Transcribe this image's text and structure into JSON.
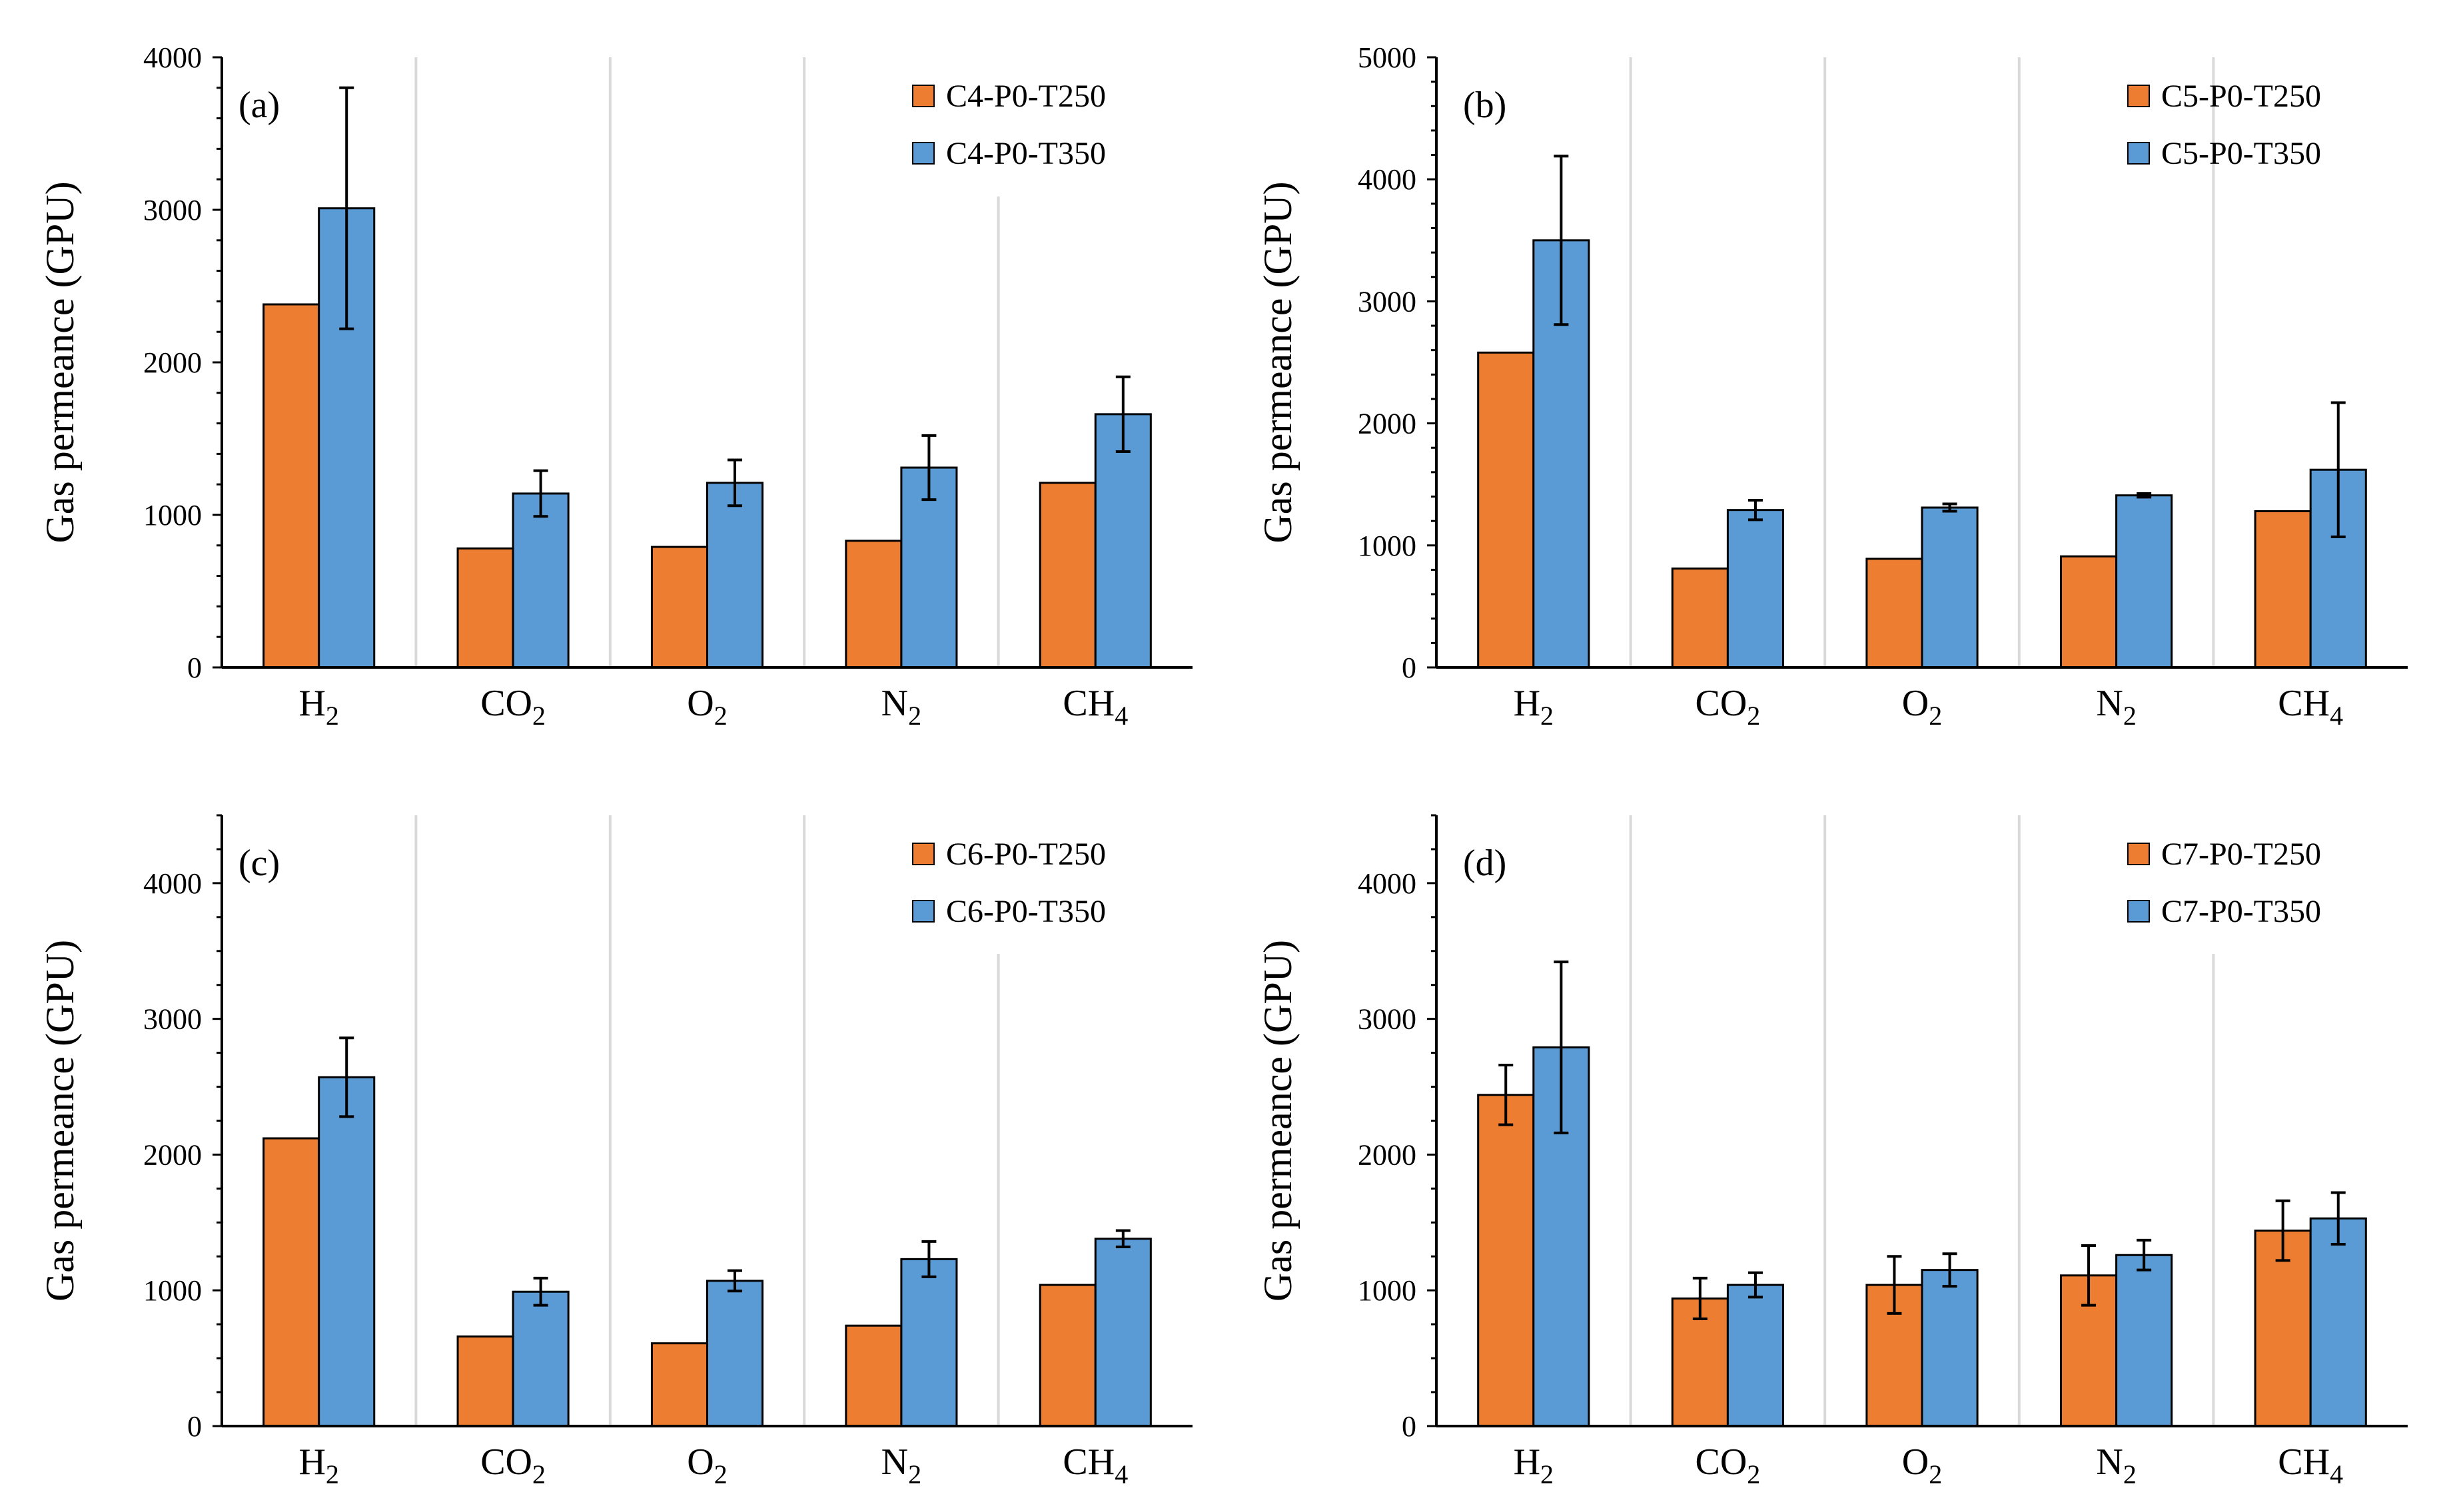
{
  "colors": {
    "series1": "#ED7D31",
    "series2": "#5B9BD5",
    "edge": "#000000",
    "divider": "#D9D9D9",
    "axis": "#000000"
  },
  "chart_data": [
    {
      "type": "bar",
      "label": "(a)",
      "ylabel": "Gas permeance (GPU)",
      "ylim": [
        0,
        4000
      ],
      "yticks": [
        0,
        1000,
        2000,
        3000,
        4000
      ],
      "minor_step": 200,
      "categories": [
        {
          "base": "H",
          "sub": "2"
        },
        {
          "base": "CO",
          "sub": "2"
        },
        {
          "base": "O",
          "sub": "2"
        },
        {
          "base": "N",
          "sub": "2"
        },
        {
          "base": "CH",
          "sub": "4"
        }
      ],
      "legend_position": "top-right",
      "series": [
        {
          "name": "C4-P0-T250",
          "values": [
            2380,
            780,
            790,
            830,
            1210
          ],
          "errors": [
            0,
            0,
            0,
            0,
            0
          ]
        },
        {
          "name": "C4-P0-T350",
          "values": [
            3010,
            1140,
            1210,
            1310,
            1660
          ],
          "errors": [
            790,
            150,
            150,
            210,
            245
          ]
        }
      ]
    },
    {
      "type": "bar",
      "label": "(b)",
      "ylabel": "Gas permeance (GPU)",
      "ylim": [
        0,
        5000
      ],
      "yticks": [
        0,
        1000,
        2000,
        3000,
        4000,
        5000
      ],
      "minor_step": 200,
      "categories": [
        {
          "base": "H",
          "sub": "2"
        },
        {
          "base": "CO",
          "sub": "2"
        },
        {
          "base": "O",
          "sub": "2"
        },
        {
          "base": "N",
          "sub": "2"
        },
        {
          "base": "CH",
          "sub": "4"
        }
      ],
      "legend_position": "top-right",
      "series": [
        {
          "name": "C5-P0-T250",
          "values": [
            2580,
            810,
            890,
            910,
            1280
          ],
          "errors": [
            0,
            0,
            0,
            0,
            0
          ]
        },
        {
          "name": "C5-P0-T350",
          "values": [
            3500,
            1290,
            1310,
            1410,
            1620
          ],
          "errors": [
            690,
            80,
            30,
            15,
            550
          ]
        }
      ]
    },
    {
      "type": "bar",
      "label": "(c)",
      "ylabel": "Gas permeance (GPU)",
      "ylim": [
        0,
        4500
      ],
      "yticks": [
        0,
        1000,
        2000,
        3000,
        4000
      ],
      "minor_step": 250,
      "categories": [
        {
          "base": "H",
          "sub": "2"
        },
        {
          "base": "CO",
          "sub": "2"
        },
        {
          "base": "O",
          "sub": "2"
        },
        {
          "base": "N",
          "sub": "2"
        },
        {
          "base": "CH",
          "sub": "4"
        }
      ],
      "legend_position": "top-right",
      "series": [
        {
          "name": "C6-P0-T250",
          "values": [
            2120,
            660,
            610,
            740,
            1040
          ],
          "errors": [
            0,
            0,
            0,
            0,
            0
          ]
        },
        {
          "name": "C6-P0-T350",
          "values": [
            2570,
            990,
            1070,
            1230,
            1380
          ],
          "errors": [
            290,
            100,
            75,
            130,
            60
          ]
        }
      ]
    },
    {
      "type": "bar",
      "label": "(d)",
      "ylabel": "Gas permeance (GPU)",
      "ylim": [
        0,
        4500
      ],
      "yticks": [
        0,
        1000,
        2000,
        3000,
        4000
      ],
      "minor_step": 250,
      "categories": [
        {
          "base": "H",
          "sub": "2"
        },
        {
          "base": "CO",
          "sub": "2"
        },
        {
          "base": "O",
          "sub": "2"
        },
        {
          "base": "N",
          "sub": "2"
        },
        {
          "base": "CH",
          "sub": "4"
        }
      ],
      "legend_position": "top-right",
      "series": [
        {
          "name": "C7-P0-T250",
          "values": [
            2440,
            940,
            1040,
            1110,
            1440
          ],
          "errors": [
            220,
            150,
            210,
            220,
            220
          ]
        },
        {
          "name": "C7-P0-T350",
          "values": [
            2790,
            1040,
            1150,
            1260,
            1530
          ],
          "errors": [
            630,
            90,
            120,
            110,
            190
          ]
        }
      ]
    }
  ]
}
